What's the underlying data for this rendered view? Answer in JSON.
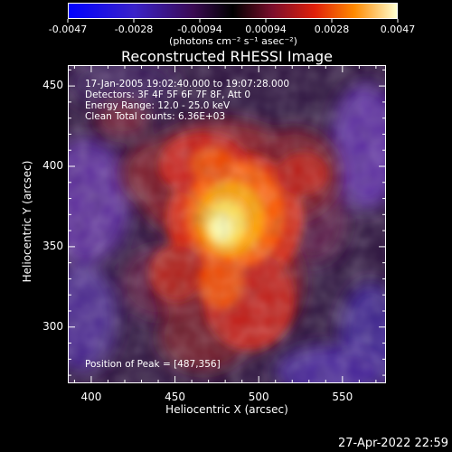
{
  "colorbar": {
    "tick_labels": [
      "-0.0047",
      "-0.0028",
      "-0.00094",
      "0.00094",
      "0.0028",
      "0.0047"
    ],
    "units": "(photons cm⁻² s⁻¹ asec⁻²)",
    "range": [
      -0.0047,
      0.0047
    ]
  },
  "title": "Reconstructed RHESSI Image",
  "info": {
    "time_range": "17-Jan-2005 19:02:40.000 to 19:07:28.000",
    "detectors": "Detectors: 3F 4F 5F 6F 7F 8F, Att 0",
    "energy": "Energy Range: 12.0 - 25.0 keV",
    "method": "Clean    Total counts: 6.36E+03",
    "peak": "Position of Peak = [487,356]"
  },
  "axes": {
    "xlabel": "Heliocentric X (arcsec)",
    "ylabel": "Heliocentric Y (arcsec)",
    "xticks": [
      "400",
      "450",
      "500",
      "550"
    ],
    "yticks": [
      "450",
      "400",
      "350",
      "300"
    ],
    "xlim": [
      386,
      576
    ],
    "ylim": [
      265,
      463
    ]
  },
  "image": {
    "peak_position": [
      487,
      356
    ],
    "colormap_colors": [
      "#0000ff",
      "#4a1f9a",
      "#2a0a3a",
      "#000000",
      "#6b0d2a",
      "#d11b0b",
      "#ff7a00",
      "#ffffc0"
    ]
  },
  "datestamp": "27-Apr-2022 22:59"
}
